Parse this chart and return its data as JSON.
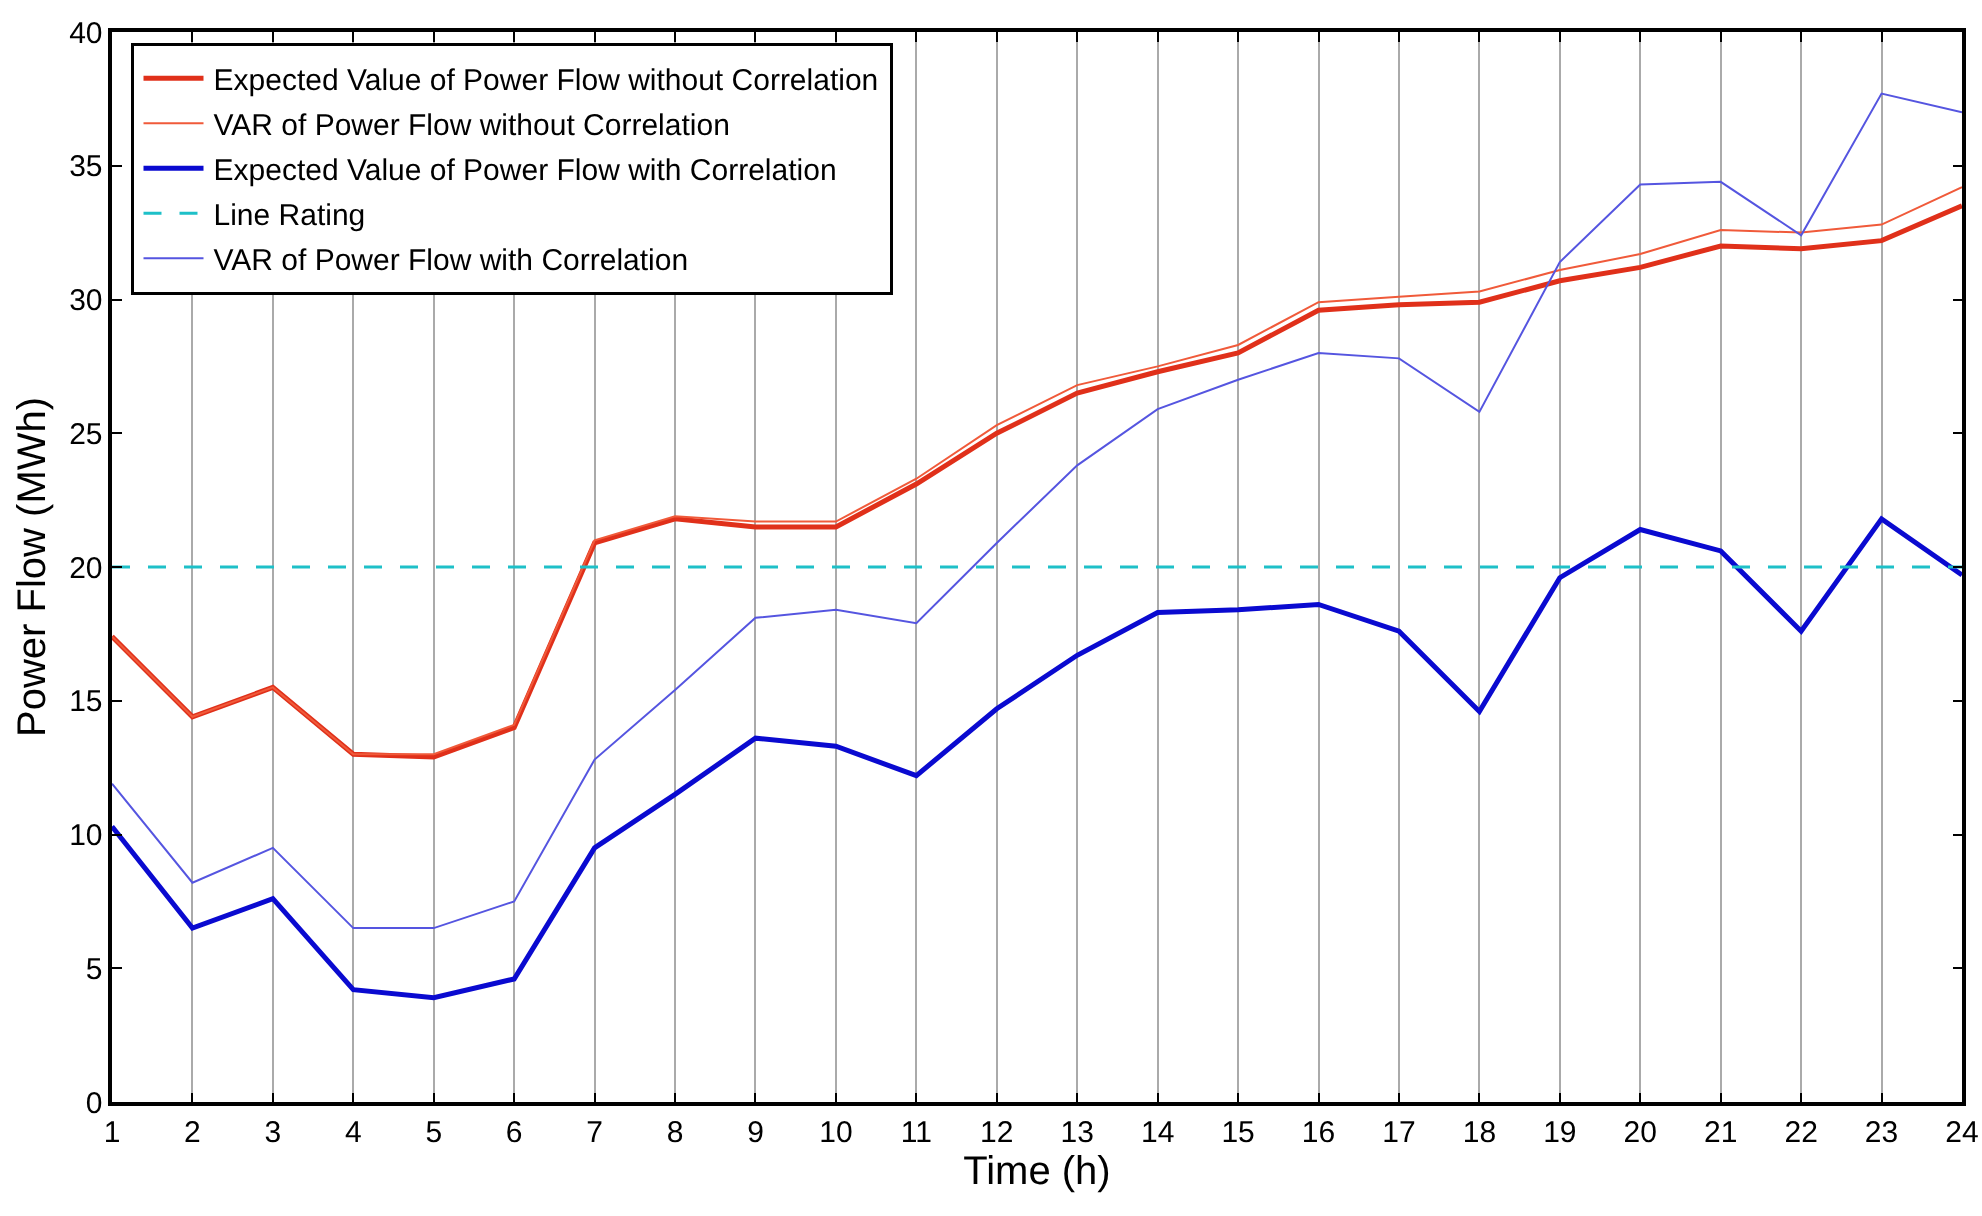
{
  "chart_data": {
    "type": "line",
    "xlabel": "Time (h)",
    "ylabel": "Power Flow (MWh)",
    "x": [
      1,
      2,
      3,
      4,
      5,
      6,
      7,
      8,
      9,
      10,
      11,
      12,
      13,
      14,
      15,
      16,
      17,
      18,
      19,
      20,
      21,
      22,
      23,
      24
    ],
    "series": [
      {
        "name": "Expected Value of Power Flow without Correlation",
        "color": "#e0301a",
        "values": [
          17.4,
          14.4,
          15.5,
          13.0,
          12.9,
          14.0,
          20.9,
          21.8,
          21.5,
          21.5,
          23.1,
          25.0,
          26.5,
          27.3,
          28.0,
          29.6,
          29.8,
          29.9,
          30.7,
          31.2,
          32.0,
          31.9,
          32.2,
          33.5
        ]
      },
      {
        "name": "VAR of Power Flow without Correlation",
        "color": "#f05a3a",
        "values": [
          17.4,
          14.4,
          15.5,
          13.0,
          13.0,
          14.1,
          21.0,
          21.9,
          21.7,
          21.7,
          23.3,
          25.3,
          26.8,
          27.5,
          28.3,
          29.9,
          30.1,
          30.3,
          31.1,
          31.7,
          32.6,
          32.5,
          32.8,
          34.2
        ]
      },
      {
        "name": "Expected Value of Power Flow with Correlation",
        "color": "#0a0ad0",
        "values": [
          10.3,
          6.5,
          7.6,
          4.2,
          3.9,
          4.6,
          9.5,
          11.5,
          13.6,
          13.3,
          12.2,
          14.7,
          16.7,
          18.3,
          18.4,
          18.6,
          17.6,
          14.6,
          19.6,
          21.4,
          20.6,
          17.6,
          21.8,
          19.7
        ]
      },
      {
        "name": "VAR of Power Flow with Correlation",
        "color": "#5555e0",
        "values": [
          11.9,
          8.2,
          9.5,
          6.5,
          6.5,
          7.5,
          12.8,
          15.4,
          18.1,
          18.4,
          17.9,
          20.9,
          23.8,
          25.9,
          27.0,
          28.0,
          27.8,
          25.8,
          31.4,
          34.3,
          34.4,
          32.4,
          37.7,
          37.0
        ]
      }
    ],
    "ref_lines": [
      {
        "axis": "y",
        "value": 20,
        "label": "Line Rating",
        "color": "#1ec0c8",
        "line_style": "dashed"
      }
    ],
    "xlim": [
      1,
      24
    ],
    "xticks": [
      1,
      2,
      3,
      4,
      5,
      6,
      7,
      8,
      9,
      10,
      11,
      12,
      13,
      14,
      15,
      16,
      17,
      18,
      19,
      20,
      21,
      22,
      23,
      24
    ],
    "ylim": [
      0,
      40
    ],
    "yticks": [
      0,
      5,
      10,
      15,
      20,
      25,
      30,
      35,
      40
    ],
    "grid": "x",
    "legend": "top left",
    "marker": "none",
    "line_style": "solid"
  }
}
